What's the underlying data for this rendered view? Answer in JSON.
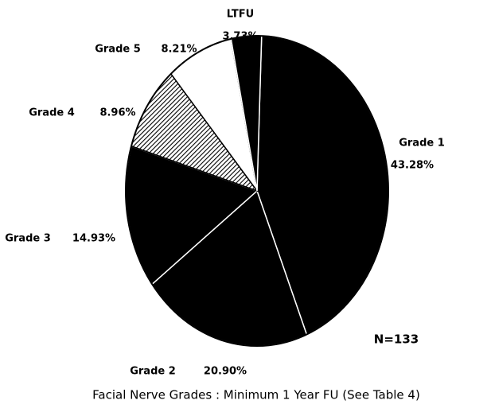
{
  "chart_data": {
    "type": "pie",
    "title": "Facial Nerve Grades : Minimum 1 Year FU  (See Table 4)",
    "annotation": "N=133",
    "categories": [
      "Grade 1",
      "Grade 2",
      "Grade 3",
      "Grade 4",
      "Grade 5",
      "LTFU"
    ],
    "values": [
      43.28,
      20.9,
      14.93,
      8.96,
      8.21,
      3.73
    ],
    "value_labels": [
      "43.28%",
      "20.90%",
      "14.93%",
      "8.96%",
      "8.21%",
      "3.73%"
    ],
    "colors": [
      "#000000",
      "#000000",
      "#000000",
      "hatched",
      "#ffffff",
      "#000000"
    ]
  }
}
